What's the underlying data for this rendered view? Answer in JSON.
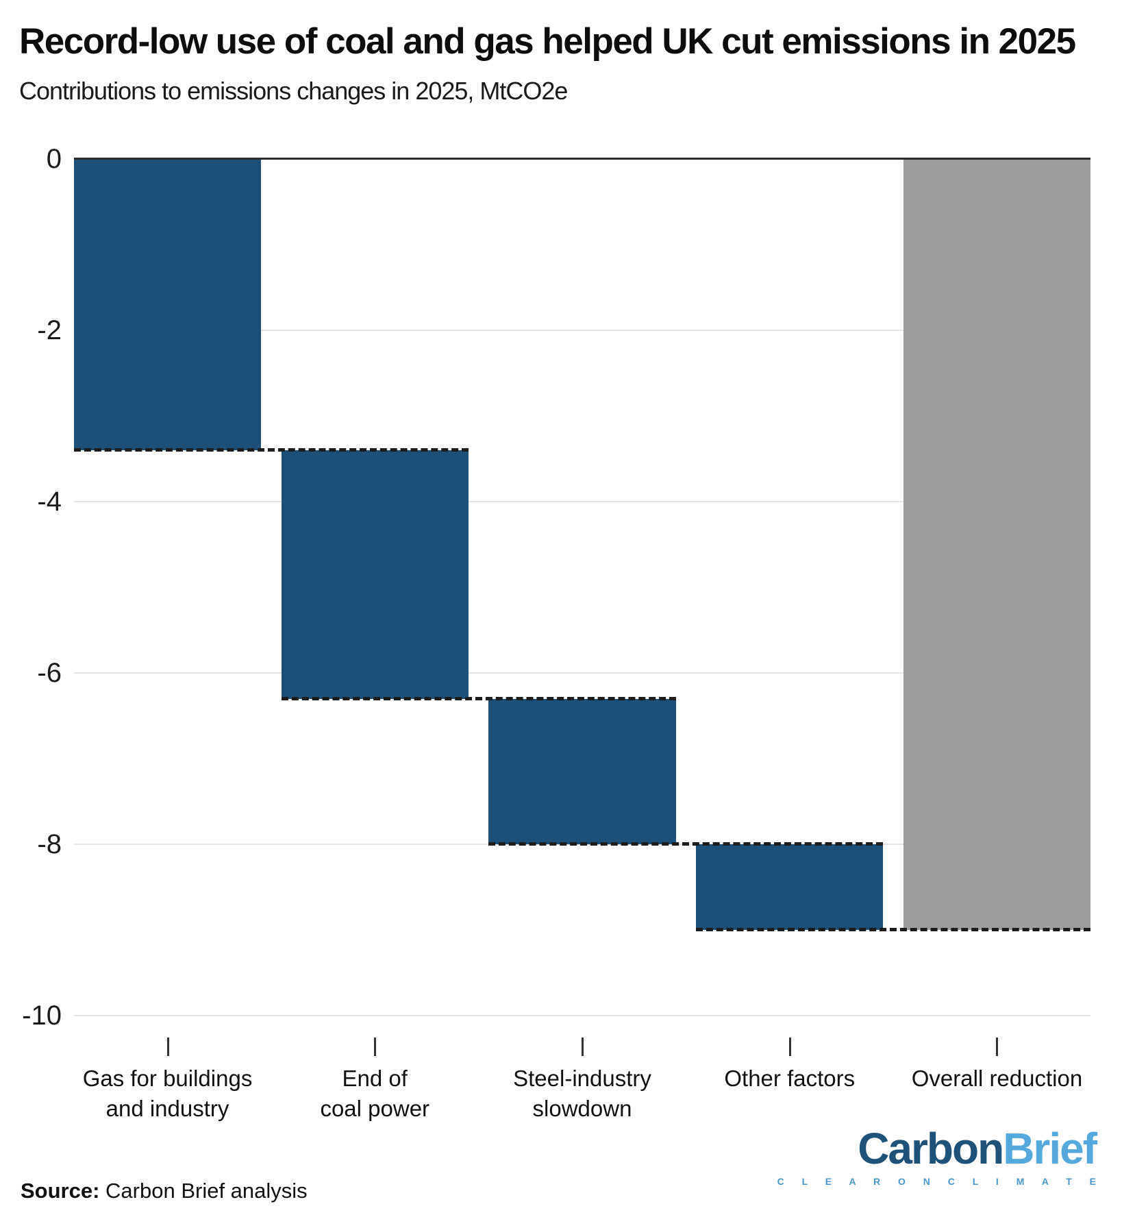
{
  "chart_data": {
    "type": "bar",
    "variant": "waterfall",
    "title": "Record-low use of coal and gas helped UK cut emissions in 2025",
    "subtitle": "Contributions to emissions changes in 2025, MtCO2e",
    "unit": "MtCO2e",
    "ylim": [
      -10,
      0
    ],
    "yticks": [
      0,
      -2,
      -4,
      -6,
      -8,
      -10
    ],
    "grid": true,
    "legend": "none",
    "categories": [
      "Gas for buildings and industry",
      "End of coal power",
      "Steel-industry slowdown",
      "Other factors",
      "Overall reduction"
    ],
    "bars": [
      {
        "label_lines": [
          "Gas for buildings",
          "and industry"
        ],
        "start": 0,
        "end": -3.4,
        "change": -3.4,
        "role": "contribution"
      },
      {
        "label_lines": [
          "End of",
          "coal power"
        ],
        "start": -3.4,
        "end": -6.3,
        "change": -2.9,
        "role": "contribution"
      },
      {
        "label_lines": [
          "Steel-industry",
          "slowdown"
        ],
        "start": -6.3,
        "end": -8.0,
        "change": -1.7,
        "role": "contribution"
      },
      {
        "label_lines": [
          "Other factors"
        ],
        "start": -8.0,
        "end": -9.0,
        "change": -1.0,
        "role": "contribution"
      },
      {
        "label_lines": [
          "Overall reduction"
        ],
        "start": 0,
        "end": -9.0,
        "change": -9.0,
        "role": "total"
      }
    ],
    "colors": {
      "contribution": "#1d5079",
      "total": "#9e9d9d",
      "connector": "#1c1c1c",
      "gridline": "#e4e4e4",
      "zero_line": "#2b2b2b"
    },
    "layout": {
      "bar_width_pct": 18.4,
      "bar_gap_pct": 2.0
    }
  },
  "source": {
    "label": "Source:",
    "text": " Carbon Brief analysis"
  },
  "logo": {
    "part1": "Carbon",
    "part2": "Brief",
    "tagline": "C L E A R   O N   C L I M A T E",
    "colors": {
      "part1": "#1e5278",
      "part2": "#55a8db",
      "tagline": "#4796cc"
    }
  }
}
